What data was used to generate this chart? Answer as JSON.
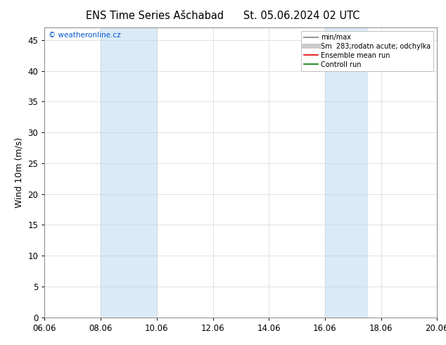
{
  "title_left": "ENS Time Series Ašchabad",
  "title_right": "St. 05.06.2024 02 UTC",
  "ylabel": "Wind 10m (m/s)",
  "ylim": [
    0,
    47
  ],
  "yticks": [
    0,
    5,
    10,
    15,
    20,
    25,
    30,
    35,
    40,
    45
  ],
  "x_start": 0,
  "x_end": 14,
  "xtick_positions": [
    0,
    2,
    4,
    6,
    8,
    10,
    12,
    14
  ],
  "xtick_labels": [
    "06.06",
    "08.06",
    "10.06",
    "12.06",
    "14.06",
    "16.06",
    "18.06",
    "20.06"
  ],
  "shaded_bands": [
    {
      "x_start": 2,
      "x_end": 4
    },
    {
      "x_start": 10,
      "x_end": 11.5
    }
  ],
  "shaded_color": "#daeaf7",
  "background_color": "#ffffff",
  "plot_bg_color": "#ffffff",
  "copyright_text": "© weatheronline.cz",
  "copyright_color": "#0055cc",
  "legend_entries": [
    {
      "label": "min/max",
      "color": "#999999",
      "lw": 1.5,
      "style": "-"
    },
    {
      "label": "Sm  283;rodatn acute; odchylka",
      "color": "#cccccc",
      "lw": 5,
      "style": "-"
    },
    {
      "label": "Ensemble mean run",
      "color": "#dd0000",
      "lw": 1.2,
      "style": "-"
    },
    {
      "label": "Controll run",
      "color": "#007700",
      "lw": 1.2,
      "style": "-"
    }
  ],
  "title_fontsize": 10.5,
  "tick_fontsize": 8.5,
  "ylabel_fontsize": 9,
  "copyright_fontsize": 7.5,
  "legend_fontsize": 7,
  "border_color": "#888888"
}
